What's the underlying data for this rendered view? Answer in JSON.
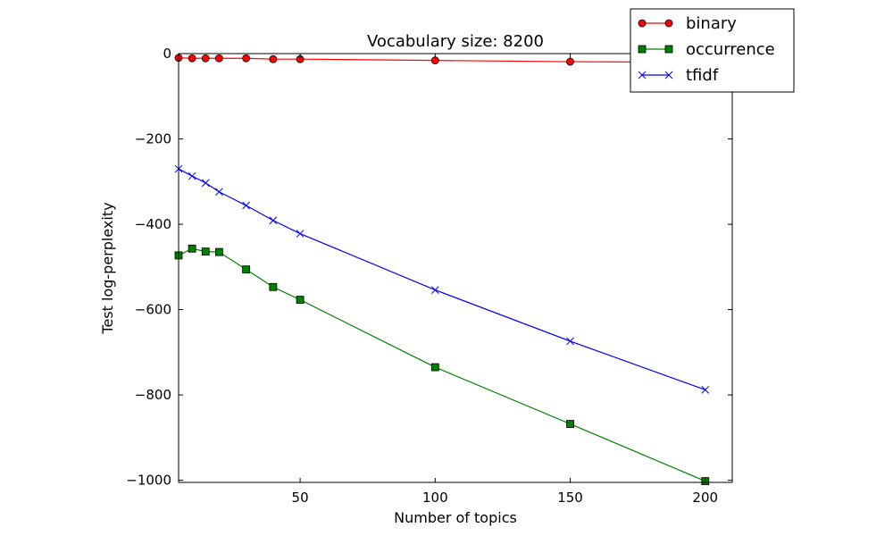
{
  "chart_data": {
    "type": "line",
    "title": "Vocabulary size: 8200",
    "xlabel": "Number of topics",
    "ylabel": "Test log-perplexity",
    "xlim": [
      5,
      210
    ],
    "ylim": [
      -1005,
      0
    ],
    "x_ticks": [
      50,
      100,
      150,
      200
    ],
    "x_tick_labels": [
      "50",
      "100",
      "150",
      "200"
    ],
    "y_ticks": [
      0,
      -200,
      -400,
      -600,
      -800,
      -1000
    ],
    "y_tick_labels": [
      "0",
      "−200",
      "−400",
      "−600",
      "−800",
      "−1000"
    ],
    "grid": false,
    "legend_position": "top-right",
    "x": [
      5,
      10,
      15,
      20,
      30,
      40,
      50,
      100,
      150,
      200
    ],
    "series": [
      {
        "name": "binary",
        "color": "#ff0000",
        "marker": "circle",
        "values": [
          -10,
          -11,
          -11,
          -11,
          -11,
          -13,
          -13,
          -16,
          -19,
          -20
        ]
      },
      {
        "name": "occurrence",
        "color": "#008000",
        "marker": "square",
        "values": [
          -473,
          -457,
          -464,
          -465,
          -506,
          -547,
          -577,
          -735,
          -868,
          -1002
        ]
      },
      {
        "name": "tfidf",
        "color": "#0000ff",
        "marker": "x",
        "values": [
          -270,
          -287,
          -303,
          -324,
          -356,
          -391,
          -422,
          -554,
          -674,
          -788
        ]
      }
    ]
  }
}
